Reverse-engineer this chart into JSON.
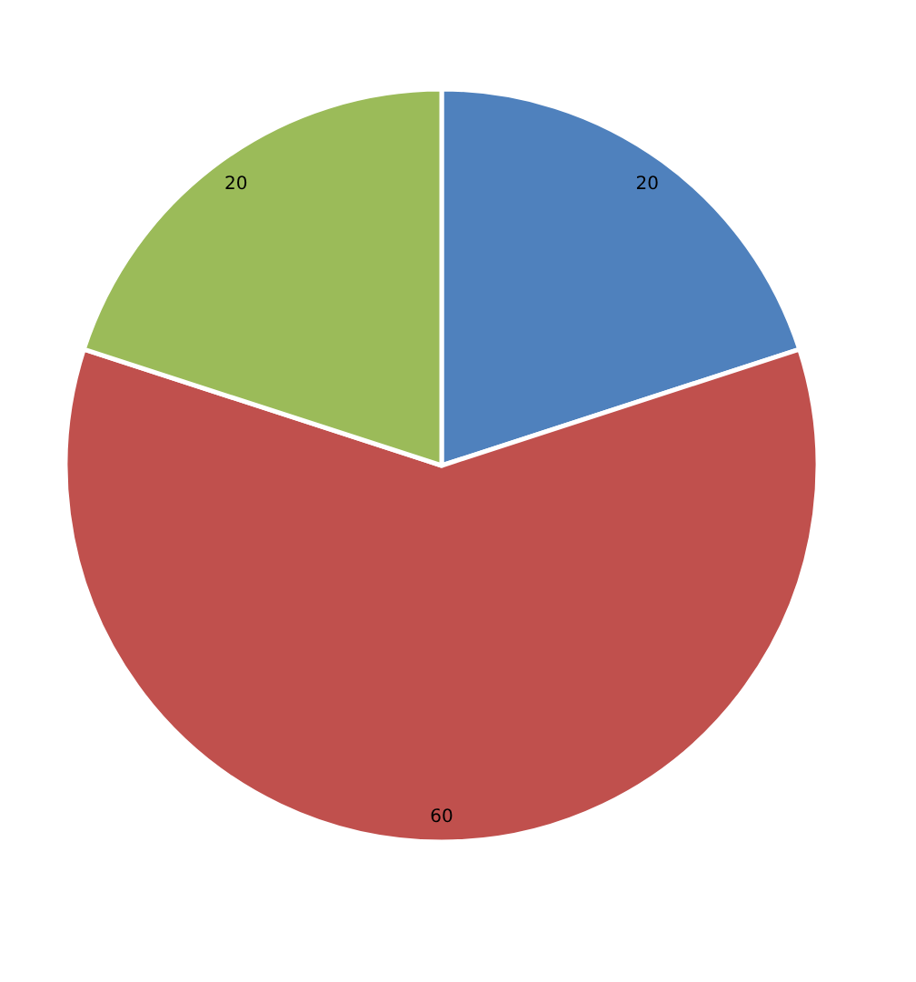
{
  "chart_data": {
    "type": "pie",
    "categories": [
      null,
      null,
      null
    ],
    "values": [
      20,
      60,
      20
    ],
    "colors": [
      "#4f81bd",
      "#c0504d",
      "#9bbb59"
    ],
    "data_labels": true
  }
}
